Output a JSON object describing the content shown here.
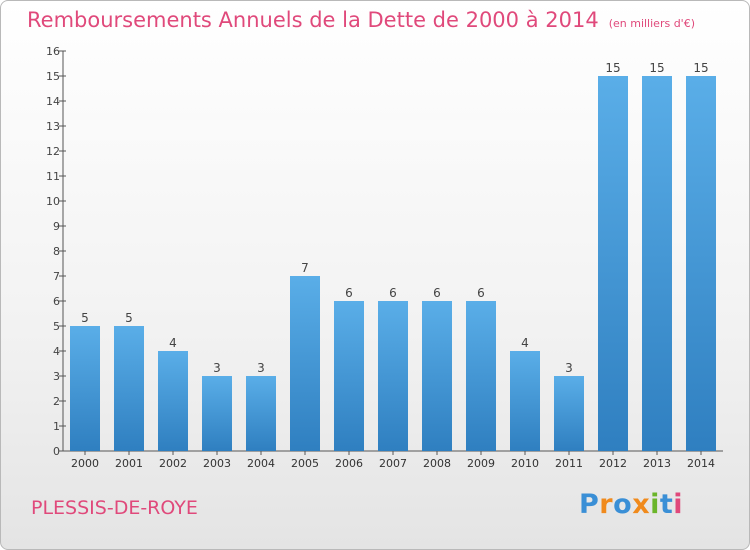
{
  "title": "Remboursements Annuels de la Dette de 2000 à 2014",
  "unit": "(en milliers d'€)",
  "place": "PLESSIS-DE-ROYE",
  "brand": {
    "text": "Proxiti",
    "letter_colors": [
      "#3a8fd6",
      "#f08a1c",
      "#3a8fd6",
      "#f08a1c",
      "#6bb52a",
      "#3a8fd6",
      "#e0497b"
    ]
  },
  "colors": {
    "bar_light": "#5aaee8",
    "bar_dark": "#2f7fc0",
    "title": "#e0497b",
    "axis": "#555555"
  },
  "chart_data": {
    "type": "bar",
    "categories": [
      "2000",
      "2001",
      "2002",
      "2003",
      "2004",
      "2005",
      "2006",
      "2007",
      "2008",
      "2009",
      "2010",
      "2011",
      "2012",
      "2013",
      "2014"
    ],
    "values": [
      5,
      5,
      4,
      3,
      3,
      7,
      6,
      6,
      6,
      6,
      4,
      3,
      15,
      15,
      15
    ],
    "ylim": [
      0,
      16
    ],
    "yticks": [
      0,
      1,
      2,
      3,
      4,
      5,
      6,
      7,
      8,
      9,
      10,
      11,
      12,
      13,
      14,
      15,
      16
    ],
    "grid": false,
    "data_labels": true
  }
}
